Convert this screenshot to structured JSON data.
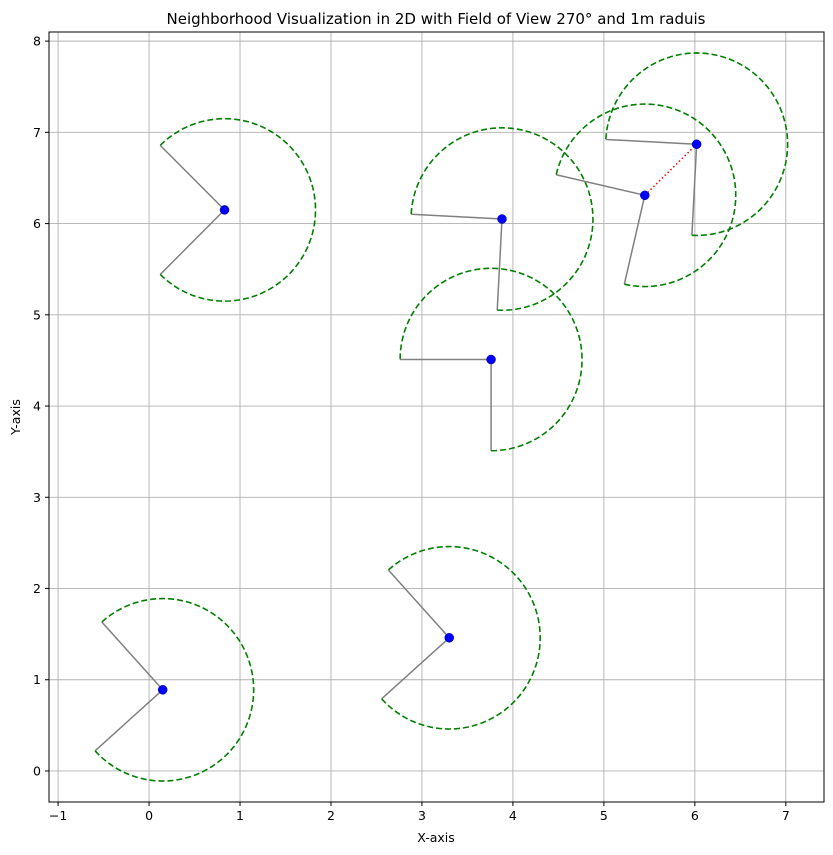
{
  "chart_data": {
    "type": "scatter",
    "title": "Neighborhood Visualization in 2D with Field of View 270° and 1m raduis",
    "xlabel": "X-axis",
    "ylabel": "Y-axis",
    "xlim": [
      -1.1,
      7.42
    ],
    "ylim": [
      -0.34,
      8.1
    ],
    "xticks": [
      -1,
      0,
      1,
      2,
      3,
      4,
      5,
      6,
      7
    ],
    "yticks": [
      0,
      1,
      2,
      3,
      4,
      5,
      6,
      7,
      8
    ],
    "grid": true,
    "field_of_view_deg": 270,
    "radius_m": 1,
    "colors": {
      "point": "#0000ff",
      "fov_arc": "#008000",
      "fov_edge": "#808080",
      "neighbor_link": "#ff0000",
      "grid": "#b0b0b0"
    },
    "agents": [
      {
        "x": 0.83,
        "y": 6.15,
        "heading_deg": 0
      },
      {
        "x": 3.88,
        "y": 6.05,
        "heading_deg": 42
      },
      {
        "x": 5.45,
        "y": 6.31,
        "heading_deg": 32
      },
      {
        "x": 6.02,
        "y": 6.87,
        "heading_deg": 42
      },
      {
        "x": 3.76,
        "y": 4.51,
        "heading_deg": 45
      },
      {
        "x": 0.15,
        "y": 0.89,
        "heading_deg": -3
      },
      {
        "x": 3.3,
        "y": 1.46,
        "heading_deg": -3
      }
    ],
    "neighbor_links": [
      {
        "from": [
          5.45,
          6.31
        ],
        "to": [
          6.02,
          6.87
        ]
      }
    ]
  }
}
